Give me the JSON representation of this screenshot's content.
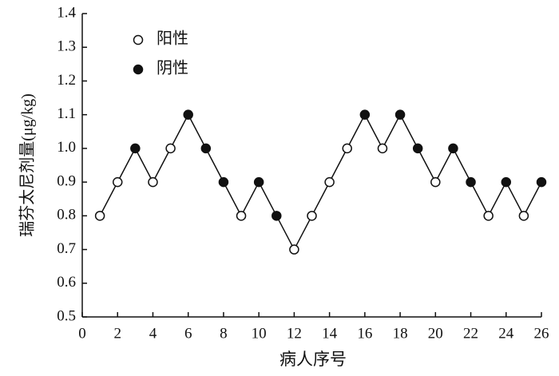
{
  "chart_data": {
    "type": "line",
    "x_label": "病人序号",
    "y_label": "瑞芬太尼剂量(μg/kg)",
    "x": [
      1,
      2,
      3,
      4,
      5,
      6,
      7,
      8,
      9,
      10,
      11,
      12,
      13,
      14,
      15,
      16,
      17,
      18,
      19,
      20,
      21,
      22,
      23,
      24,
      25,
      26
    ],
    "values": [
      0.8,
      0.9,
      1.0,
      0.9,
      1.0,
      1.1,
      1.0,
      0.9,
      0.8,
      0.9,
      0.8,
      0.7,
      0.8,
      0.9,
      1.0,
      1.1,
      1.0,
      1.1,
      1.0,
      0.9,
      1.0,
      0.9,
      0.8,
      0.9,
      0.8,
      0.9
    ],
    "markers": [
      "open",
      "open",
      "filled",
      "open",
      "open",
      "filled",
      "filled",
      "filled",
      "open",
      "filled",
      "filled",
      "open",
      "open",
      "open",
      "open",
      "filled",
      "open",
      "filled",
      "filled",
      "open",
      "filled",
      "filled",
      "open",
      "filled",
      "open",
      "filled"
    ],
    "legend": [
      {
        "name": "阳性",
        "marker": "open"
      },
      {
        "name": "阴性",
        "marker": "filled"
      }
    ],
    "color": "#111111",
    "xlim": [
      0,
      26
    ],
    "xticks": [
      0,
      2,
      4,
      6,
      8,
      10,
      12,
      14,
      16,
      18,
      20,
      22,
      24,
      26
    ],
    "ylim": [
      0.5,
      1.4
    ],
    "yticks": [
      0.5,
      0.6,
      0.7,
      0.8,
      0.9,
      {
        "value": 1,
        "label": "1.0"
      },
      1.1,
      1.2,
      1.3,
      1.4
    ]
  }
}
